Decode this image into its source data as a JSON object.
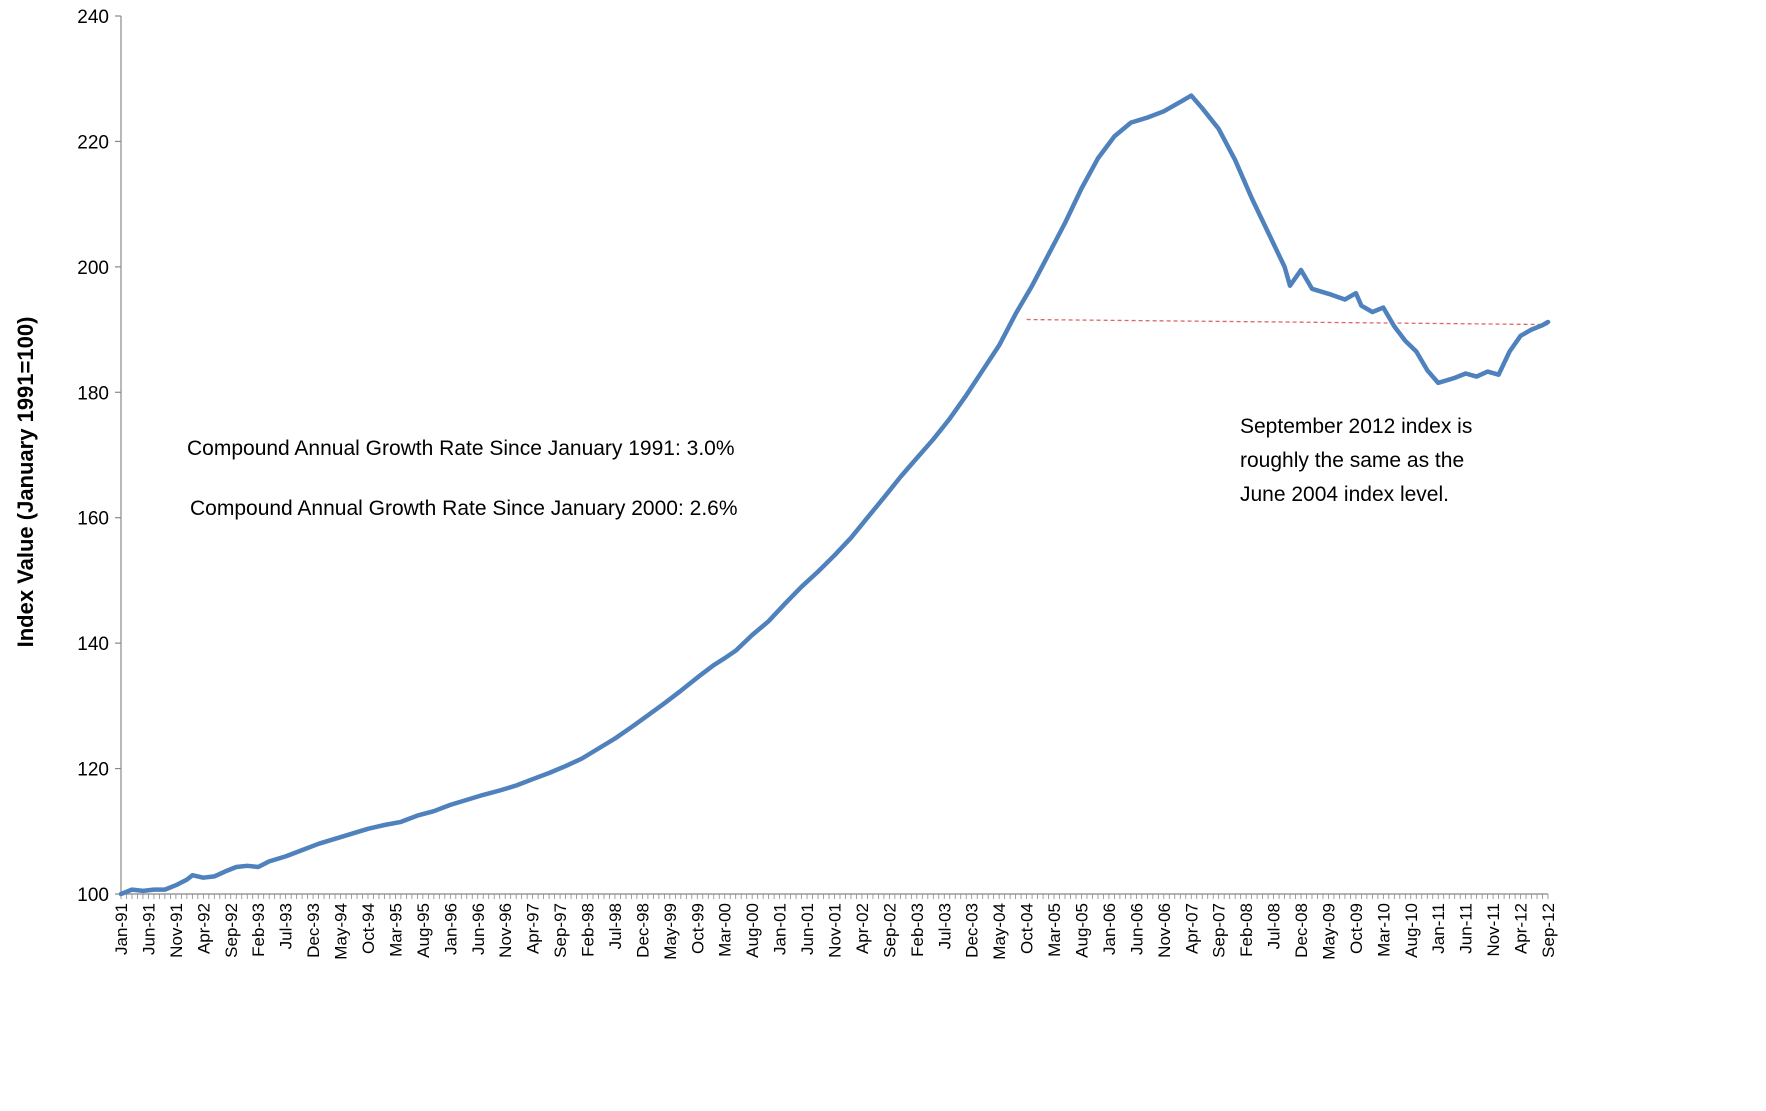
{
  "chart_data": {
    "type": "line",
    "title": "",
    "xlabel": "",
    "ylabel": "Index Value (January 1991=100)",
    "ylim": [
      100,
      240
    ],
    "y_ticks": [
      100,
      120,
      140,
      160,
      180,
      200,
      220,
      240
    ],
    "grid": false,
    "legend": "none",
    "colors": {
      "series": "#4f81bd",
      "reference_line": "#e06666",
      "axis": "#888888"
    },
    "x_tick_labels": [
      "Jan-91",
      "Jun-91",
      "Nov-91",
      "Apr-92",
      "Sep-92",
      "Feb-93",
      "Jul-93",
      "Dec-93",
      "May-94",
      "Oct-94",
      "Mar-95",
      "Aug-95",
      "Jan-96",
      "Jun-96",
      "Nov-96",
      "Apr-97",
      "Sep-97",
      "Feb-98",
      "Jul-98",
      "Dec-98",
      "May-99",
      "Oct-99",
      "Mar-00",
      "Aug-00",
      "Jan-01",
      "Jun-01",
      "Nov-01",
      "Apr-02",
      "Sep-02",
      "Feb-03",
      "Jul-03",
      "Dec-03",
      "May-04",
      "Oct-04",
      "Mar-05",
      "Aug-05",
      "Jan-06",
      "Jun-06",
      "Nov-06",
      "Apr-07",
      "Sep-07",
      "Feb-08",
      "Jul-08",
      "Dec-08",
      "May-09",
      "Oct-09",
      "Mar-10",
      "Aug-10",
      "Jan-11",
      "Jun-11",
      "Nov-11",
      "Apr-12",
      "Sep-12"
    ],
    "x_range": [
      "Jan-91",
      "Sep-12"
    ],
    "anchor_points": [
      [
        "Jan-91",
        100.0
      ],
      [
        "Mar-91",
        100.7
      ],
      [
        "May-91",
        100.5
      ],
      [
        "Jul-91",
        100.7
      ],
      [
        "Sep-91",
        100.7
      ],
      [
        "Nov-91",
        101.4
      ],
      [
        "Jan-92",
        102.3
      ],
      [
        "Feb-92",
        103.0
      ],
      [
        "Apr-92",
        102.6
      ],
      [
        "Jun-92",
        102.8
      ],
      [
        "Aug-92",
        103.6
      ],
      [
        "Oct-92",
        104.3
      ],
      [
        "Dec-92",
        104.5
      ],
      [
        "Feb-93",
        104.3
      ],
      [
        "Apr-93",
        105.2
      ],
      [
        "Jul-93",
        106.0
      ],
      [
        "Oct-93",
        107.0
      ],
      [
        "Jan-94",
        108.0
      ],
      [
        "Apr-94",
        108.8
      ],
      [
        "Jul-94",
        109.6
      ],
      [
        "Oct-94",
        110.4
      ],
      [
        "Jan-95",
        111.0
      ],
      [
        "Apr-95",
        111.5
      ],
      [
        "Jul-95",
        112.5
      ],
      [
        "Oct-95",
        113.2
      ],
      [
        "Jan-96",
        114.2
      ],
      [
        "Apr-96",
        115.0
      ],
      [
        "Jul-96",
        115.8
      ],
      [
        "Oct-96",
        116.5
      ],
      [
        "Jan-97",
        117.3
      ],
      [
        "Apr-97",
        118.3
      ],
      [
        "Jul-97",
        119.3
      ],
      [
        "Oct-97",
        120.4
      ],
      [
        "Jan-98",
        121.6
      ],
      [
        "Apr-98",
        123.2
      ],
      [
        "Jul-98",
        124.8
      ],
      [
        "Oct-98",
        126.6
      ],
      [
        "Jan-99",
        128.5
      ],
      [
        "Apr-99",
        130.4
      ],
      [
        "Jul-99",
        132.4
      ],
      [
        "Oct-99",
        134.5
      ],
      [
        "Jan-00",
        136.5
      ],
      [
        "Mar-00",
        137.6
      ],
      [
        "May-00",
        138.8
      ],
      [
        "Aug-00",
        141.3
      ],
      [
        "Nov-00",
        143.5
      ],
      [
        "Feb-01",
        146.3
      ],
      [
        "May-01",
        149.0
      ],
      [
        "Aug-01",
        151.4
      ],
      [
        "Nov-01",
        154.0
      ],
      [
        "Feb-02",
        156.8
      ],
      [
        "May-02",
        160.0
      ],
      [
        "Aug-02",
        163.2
      ],
      [
        "Nov-02",
        166.5
      ],
      [
        "Feb-03",
        169.5
      ],
      [
        "May-03",
        172.5
      ],
      [
        "Aug-03",
        175.8
      ],
      [
        "Nov-03",
        179.5
      ],
      [
        "Feb-04",
        183.5
      ],
      [
        "May-04",
        187.5
      ],
      [
        "Aug-04",
        192.5
      ],
      [
        "Nov-04",
        197.0
      ],
      [
        "Feb-05",
        202.0
      ],
      [
        "May-05",
        207.0
      ],
      [
        "Aug-05",
        212.5
      ],
      [
        "Nov-05",
        217.3
      ],
      [
        "Feb-06",
        220.8
      ],
      [
        "May-06",
        223.0
      ],
      [
        "Aug-06",
        223.8
      ],
      [
        "Nov-06",
        224.8
      ],
      [
        "Feb-07",
        226.3
      ],
      [
        "Apr-07",
        227.3
      ],
      [
        "Jun-07",
        225.3
      ],
      [
        "Sep-07",
        222.0
      ],
      [
        "Dec-07",
        217.0
      ],
      [
        "Mar-08",
        211.0
      ],
      [
        "Jun-08",
        205.5
      ],
      [
        "Sep-08",
        200.0
      ],
      [
        "Oct-08",
        197.0
      ],
      [
        "Dec-08",
        199.5
      ],
      [
        "Feb-09",
        196.5
      ],
      [
        "May-09",
        195.7
      ],
      [
        "Aug-09",
        194.8
      ],
      [
        "Oct-09",
        195.8
      ],
      [
        "Nov-09",
        193.8
      ],
      [
        "Jan-10",
        192.8
      ],
      [
        "Mar-10",
        193.5
      ],
      [
        "May-10",
        190.5
      ],
      [
        "Jul-10",
        188.2
      ],
      [
        "Sep-10",
        186.5
      ],
      [
        "Nov-10",
        183.5
      ],
      [
        "Jan-11",
        181.5
      ],
      [
        "Apr-11",
        182.3
      ],
      [
        "Jun-11",
        183.0
      ],
      [
        "Aug-11",
        182.5
      ],
      [
        "Oct-11",
        183.3
      ],
      [
        "Dec-11",
        182.8
      ],
      [
        "Feb-12",
        186.5
      ],
      [
        "Apr-12",
        189.0
      ],
      [
        "Jun-12",
        190.0
      ],
      [
        "Aug-12",
        190.7
      ],
      [
        "Sep-12",
        191.2
      ]
    ],
    "reference_line": {
      "from": [
        "Oct-04",
        191.6
      ],
      "to": [
        "Sep-12",
        190.8
      ]
    },
    "annotations": [
      "Compound Annual Growth Rate Since January 1991:  3.0%",
      "Compound Annual Growth Rate Since January 2000:  2.6%"
    ],
    "note_lines": [
      "September 2012 index is",
      "roughly the same as the",
      "June 2004 index level."
    ]
  }
}
